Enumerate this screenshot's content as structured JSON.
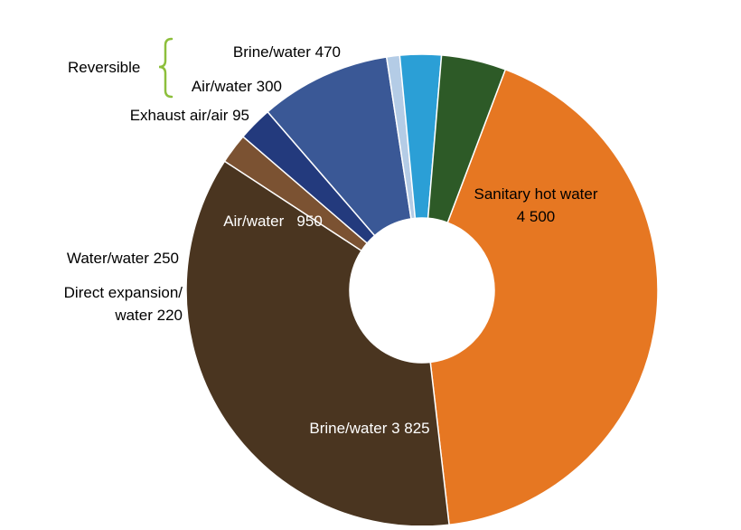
{
  "chart_data": {
    "type": "pie",
    "style": "donut",
    "title": "",
    "slices": [
      {
        "name": "Sanitary hot water",
        "value": 4500,
        "label_line1": "Sanitary hot water",
        "label_line2": "4 500",
        "color": "#E67722",
        "label_color": "#000000"
      },
      {
        "name": "Brine/water",
        "value": 3825,
        "label_line1": "Brine/water 3 825",
        "label_line2": "",
        "color": "#4A3520",
        "label_color": "#ffffff"
      },
      {
        "name": "Direct expansion/water",
        "value": 220,
        "label_line1": "Direct expansion/",
        "label_line2": "water 220",
        "color": "#7B5232",
        "label_color": "#000000"
      },
      {
        "name": "Water/water",
        "value": 250,
        "label_line1": "Water/water 250",
        "label_line2": "",
        "color": "#233A7D",
        "label_color": "#000000"
      },
      {
        "name": "Air/water",
        "value": 950,
        "label_line1": "Air/water   950",
        "label_line2": "",
        "color": "#3A5896",
        "label_color": "#ffffff"
      },
      {
        "name": "Exhaust air/air",
        "value": 95,
        "label_line1": "Exhaust air/air 95",
        "label_line2": "",
        "color": "#B4CCE6",
        "label_color": "#000000"
      },
      {
        "name": "Air/water (reversible)",
        "value": 300,
        "label_line1": "Air/water 300",
        "label_line2": "",
        "color": "#2B9FD6",
        "label_color": "#000000"
      },
      {
        "name": "Brine/water (reversible)",
        "value": 470,
        "label_line1": "Brine/water 470",
        "label_line2": "",
        "color": "#2D5A27",
        "label_color": "#000000"
      }
    ],
    "group_label": "Reversible",
    "group_color": "#8DBF3C"
  }
}
